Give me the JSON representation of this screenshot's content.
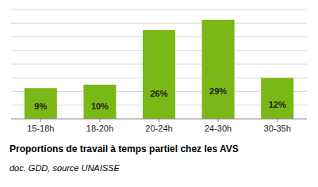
{
  "chart_data": {
    "type": "bar",
    "title": "Proportions de travail à temps partiel chez les AVS",
    "subtitle": "doc. GDD, source UNAISSE",
    "categories": [
      "15-18h",
      "18-20h",
      "20-24h",
      "24-30h",
      "30-35h"
    ],
    "values": [
      9,
      10,
      26,
      29,
      12
    ],
    "value_labels": [
      "9%",
      "10%",
      "26%",
      "29%",
      "12%"
    ],
    "data_labels": true,
    "color": "#7ab818",
    "ylim": [
      0,
      32
    ],
    "yticks": [
      4,
      8,
      12,
      16,
      20,
      24,
      28,
      32
    ],
    "grid": true,
    "tick_labels": "x"
  }
}
